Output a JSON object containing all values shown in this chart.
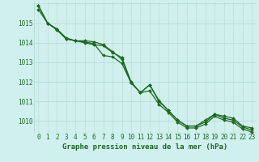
{
  "title": "Graphe pression niveau de la mer (hPa)",
  "background_color": "#cff0ee",
  "grid_color_major": "#b8ddd8",
  "grid_color_minor": "#d8ecea",
  "line_color": "#1a6b1a",
  "text_color": "#1a6b1a",
  "xlim": [
    -0.5,
    23.5
  ],
  "ylim": [
    1009.4,
    1016.1
  ],
  "yticks": [
    1010,
    1011,
    1012,
    1013,
    1014,
    1015
  ],
  "xticks": [
    0,
    1,
    2,
    3,
    4,
    5,
    6,
    7,
    8,
    9,
    10,
    11,
    12,
    13,
    14,
    15,
    16,
    17,
    18,
    19,
    20,
    21,
    22,
    23
  ],
  "series": [
    [
      1015.7,
      1015.0,
      1014.7,
      1014.2,
      1014.1,
      1014.0,
      1013.9,
      1013.85,
      1013.5,
      1013.25,
      1012.0,
      1011.45,
      1011.85,
      1011.0,
      1010.55,
      1010.05,
      1009.75,
      1009.75,
      1009.95,
      1010.35,
      1010.15,
      1010.05,
      1009.7,
      1009.55
    ],
    [
      1015.9,
      1015.0,
      1014.65,
      1014.2,
      1014.1,
      1014.05,
      1013.95,
      1013.35,
      1013.28,
      1012.95,
      1011.95,
      1011.45,
      1011.55,
      1010.85,
      1010.45,
      1009.95,
      1009.65,
      1009.65,
      1009.85,
      1010.25,
      1010.05,
      1009.95,
      1009.6,
      1009.45
    ],
    [
      1015.9,
      1015.0,
      1014.7,
      1014.25,
      1014.1,
      1014.1,
      1014.05,
      1013.9,
      1013.55,
      1013.15,
      1011.95,
      1011.45,
      1011.85,
      1011.05,
      1010.55,
      1010.05,
      1009.75,
      1009.75,
      1010.05,
      1010.35,
      1010.25,
      1010.15,
      1009.75,
      1009.65
    ]
  ],
  "figsize": [
    3.2,
    2.0
  ],
  "dpi": 100
}
